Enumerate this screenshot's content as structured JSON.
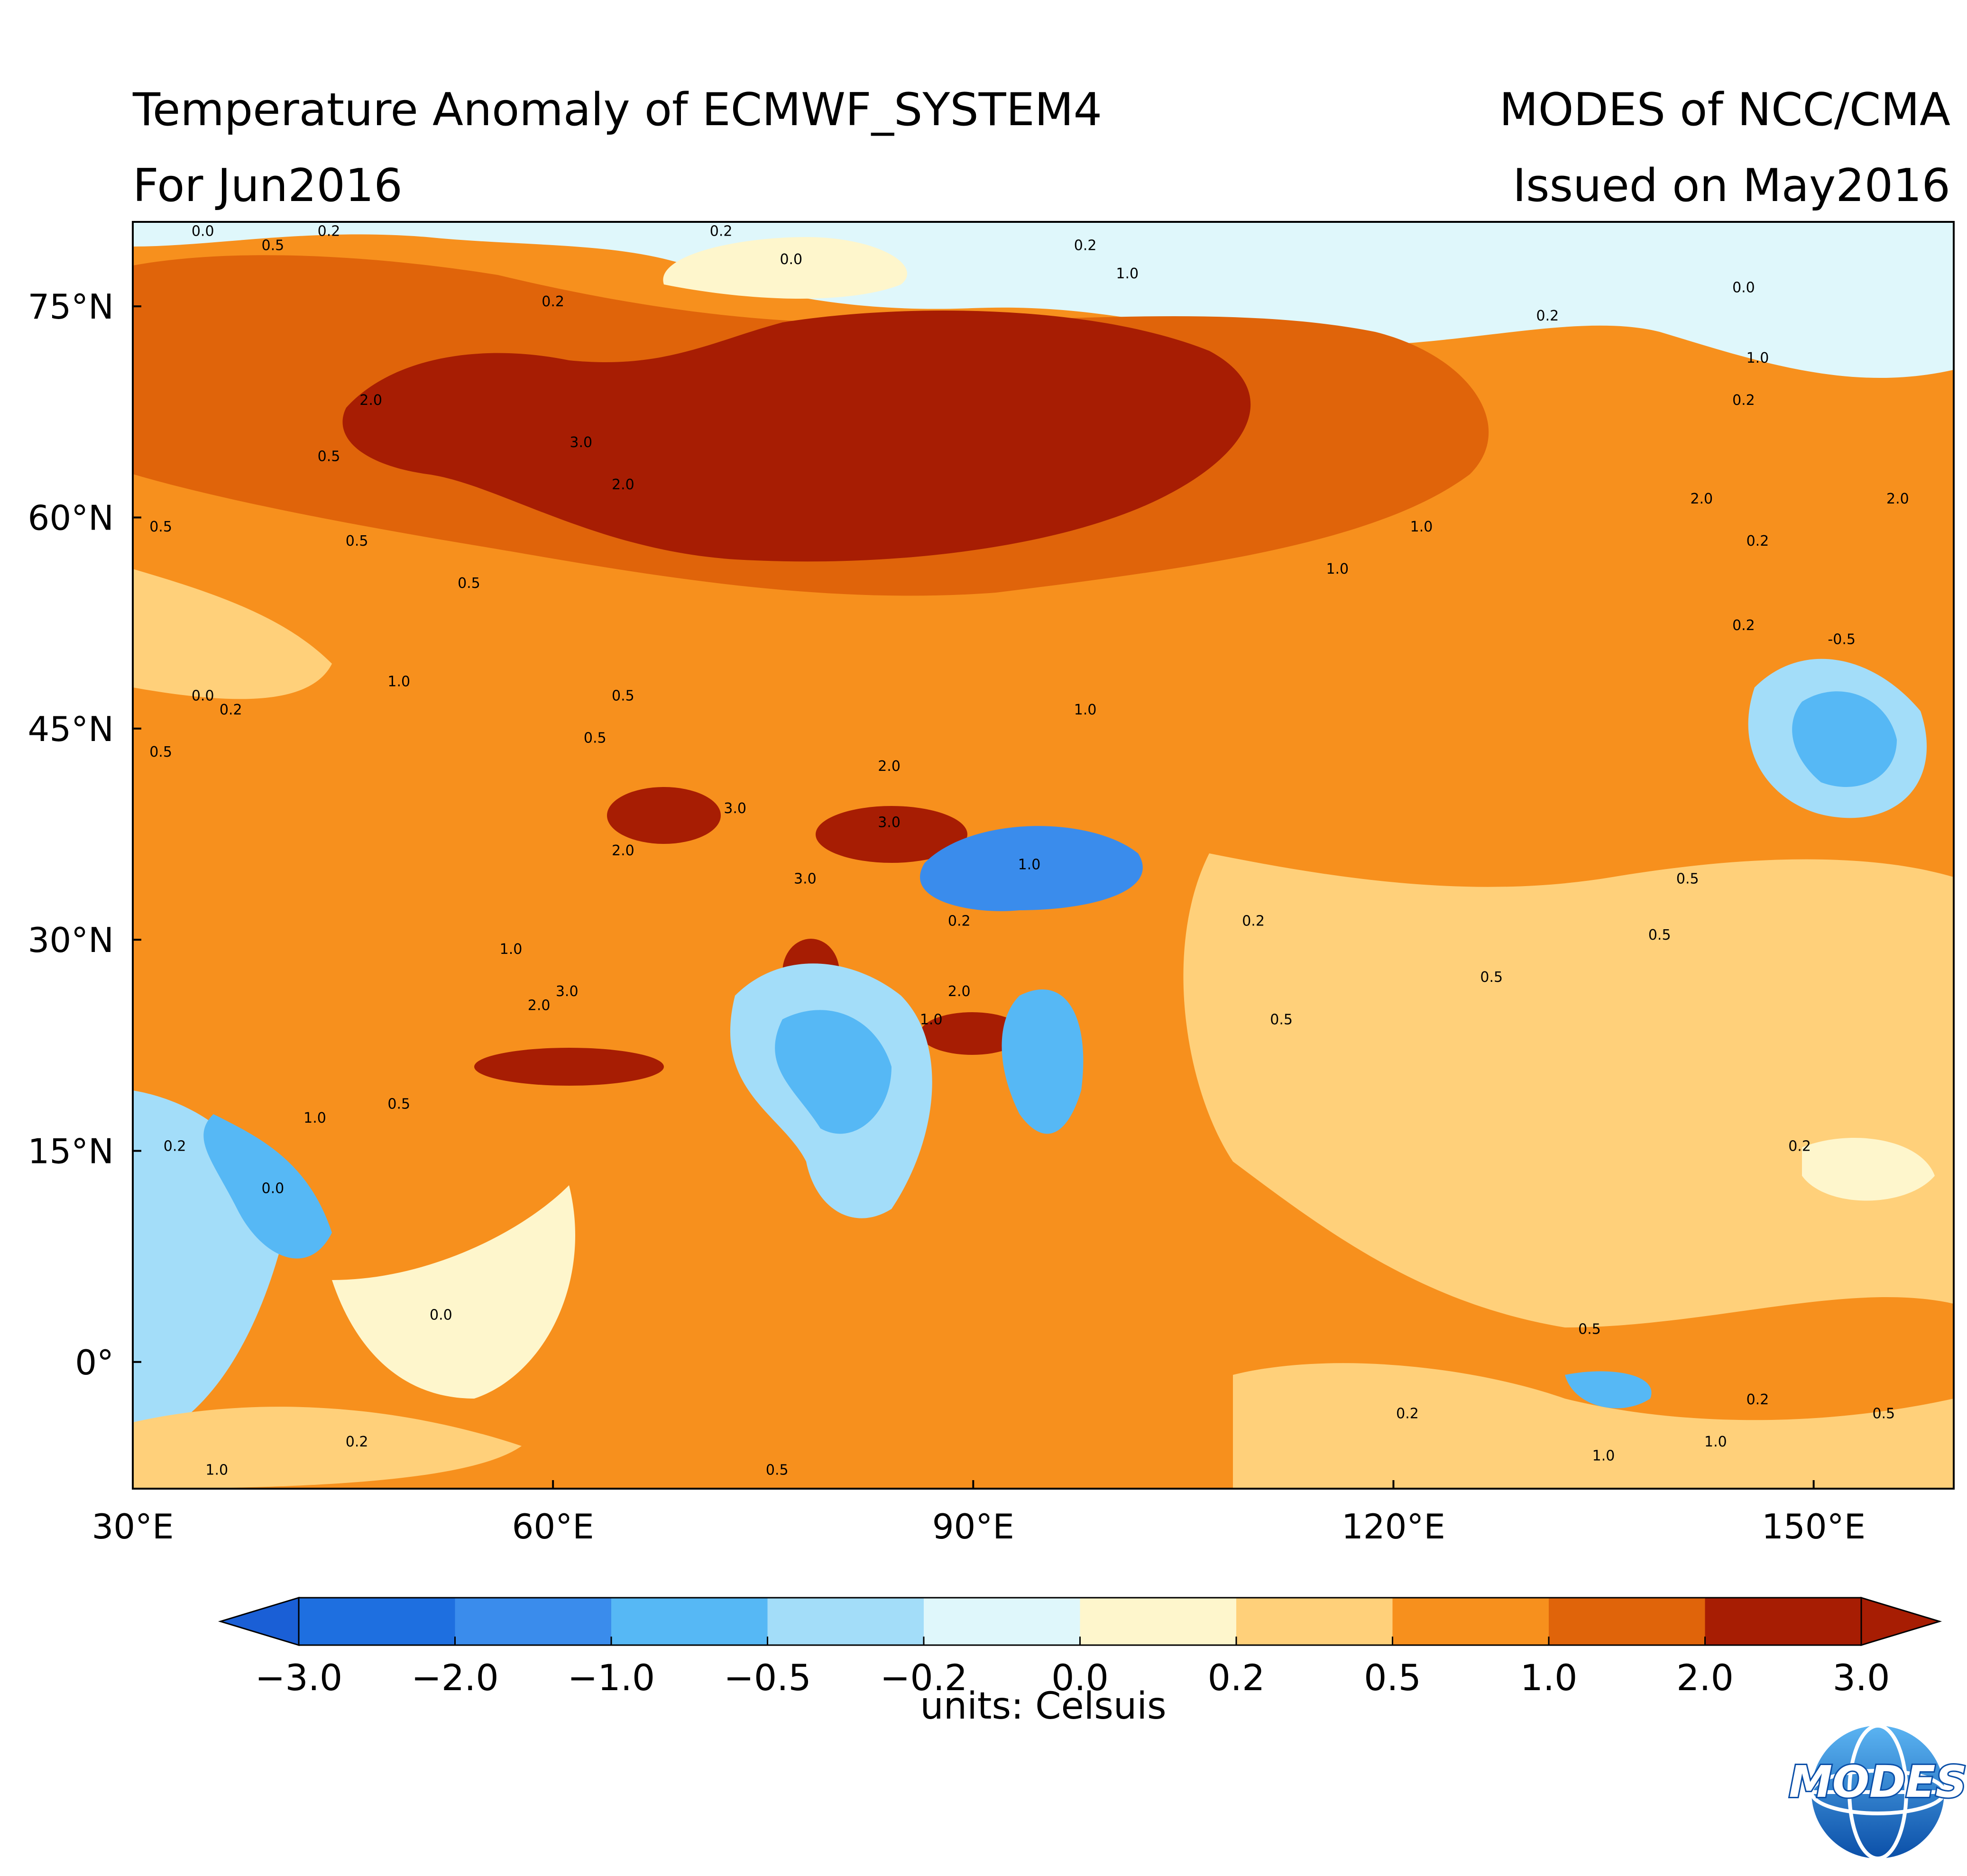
{
  "title": {
    "left_line1": "Temperature Anomaly of ECMWF_SYSTEM4",
    "left_line2": "For Jun2016",
    "right_line1": "MODES of NCC/CMA",
    "right_line2": "Issued on May2016"
  },
  "map": {
    "lon_range": [
      30,
      160
    ],
    "lat_range": [
      -9,
      81
    ],
    "x_ticks": [
      {
        "value": 30,
        "label": "30°E"
      },
      {
        "value": 60,
        "label": "60°E"
      },
      {
        "value": 90,
        "label": "90°E"
      },
      {
        "value": 120,
        "label": "120°E"
      },
      {
        "value": 150,
        "label": "150°E"
      }
    ],
    "y_ticks": [
      {
        "value": 75,
        "label": "75°N"
      },
      {
        "value": 60,
        "label": "60°N"
      },
      {
        "value": 45,
        "label": "45°N"
      },
      {
        "value": 30,
        "label": "30°N"
      },
      {
        "value": 15,
        "label": "15°N"
      },
      {
        "value": 0,
        "label": "0°"
      }
    ],
    "contour_labels": [
      {
        "lon": 35,
        "lat": 80,
        "text": "0.0"
      },
      {
        "lon": 40,
        "lat": 79,
        "text": "0.5"
      },
      {
        "lon": 44,
        "lat": 80,
        "text": "0.2"
      },
      {
        "lon": 60,
        "lat": 75,
        "text": "0.2"
      },
      {
        "lon": 77,
        "lat": 78,
        "text": "0.0"
      },
      {
        "lon": 72,
        "lat": 80,
        "text": "0.2"
      },
      {
        "lon": 98,
        "lat": 79,
        "text": "0.2"
      },
      {
        "lon": 101,
        "lat": 77,
        "text": "1.0"
      },
      {
        "lon": 62,
        "lat": 65,
        "text": "3.0"
      },
      {
        "lon": 65,
        "lat": 62,
        "text": "2.0"
      },
      {
        "lon": 47,
        "lat": 68,
        "text": "2.0"
      },
      {
        "lon": 44,
        "lat": 64,
        "text": "0.5"
      },
      {
        "lon": 46,
        "lat": 58,
        "text": "0.5"
      },
      {
        "lon": 54,
        "lat": 55,
        "text": "0.5"
      },
      {
        "lon": 32,
        "lat": 59,
        "text": "0.5"
      },
      {
        "lon": 131,
        "lat": 74,
        "text": "0.2"
      },
      {
        "lon": 145,
        "lat": 76,
        "text": "0.0"
      },
      {
        "lon": 146,
        "lat": 71,
        "text": "1.0"
      },
      {
        "lon": 145,
        "lat": 68,
        "text": "0.2"
      },
      {
        "lon": 142,
        "lat": 61,
        "text": "2.0"
      },
      {
        "lon": 156,
        "lat": 61,
        "text": "2.0"
      },
      {
        "lon": 122,
        "lat": 59,
        "text": "1.0"
      },
      {
        "lon": 116,
        "lat": 56,
        "text": "1.0"
      },
      {
        "lon": 146,
        "lat": 58,
        "text": "0.2"
      },
      {
        "lon": 152,
        "lat": 51,
        "text": "-0.5"
      },
      {
        "lon": 145,
        "lat": 52,
        "text": "0.2"
      },
      {
        "lon": 35,
        "lat": 47,
        "text": "0.0"
      },
      {
        "lon": 37,
        "lat": 46,
        "text": "0.2"
      },
      {
        "lon": 32,
        "lat": 43,
        "text": "0.5"
      },
      {
        "lon": 49,
        "lat": 48,
        "text": "1.0"
      },
      {
        "lon": 63,
        "lat": 44,
        "text": "0.5"
      },
      {
        "lon": 65,
        "lat": 47,
        "text": "0.5"
      },
      {
        "lon": 98,
        "lat": 46,
        "text": "1.0"
      },
      {
        "lon": 84,
        "lat": 42,
        "text": "2.0"
      },
      {
        "lon": 84,
        "lat": 38,
        "text": "3.0"
      },
      {
        "lon": 78,
        "lat": 34,
        "text": "3.0"
      },
      {
        "lon": 73,
        "lat": 39,
        "text": "3.0"
      },
      {
        "lon": 65,
        "lat": 36,
        "text": "2.0"
      },
      {
        "lon": 94,
        "lat": 35,
        "text": "1.0"
      },
      {
        "lon": 89,
        "lat": 31,
        "text": "0.2"
      },
      {
        "lon": 57,
        "lat": 29,
        "text": "1.0"
      },
      {
        "lon": 59,
        "lat": 25,
        "text": "2.0"
      },
      {
        "lon": 61,
        "lat": 26,
        "text": "3.0"
      },
      {
        "lon": 49,
        "lat": 18,
        "text": "0.5"
      },
      {
        "lon": 43,
        "lat": 17,
        "text": "1.0"
      },
      {
        "lon": 89,
        "lat": 26,
        "text": "2.0"
      },
      {
        "lon": 87,
        "lat": 24,
        "text": "1.0"
      },
      {
        "lon": 110,
        "lat": 31,
        "text": "0.2"
      },
      {
        "lon": 112,
        "lat": 24,
        "text": "0.5"
      },
      {
        "lon": 127,
        "lat": 27,
        "text": "0.5"
      },
      {
        "lon": 139,
        "lat": 30,
        "text": "0.5"
      },
      {
        "lon": 141,
        "lat": 34,
        "text": "0.5"
      },
      {
        "lon": 149,
        "lat": 15,
        "text": "0.2"
      },
      {
        "lon": 134,
        "lat": 2,
        "text": "0.5"
      },
      {
        "lon": 155,
        "lat": -4,
        "text": "0.5"
      },
      {
        "lon": 33,
        "lat": 15,
        "text": "0.2"
      },
      {
        "lon": 40,
        "lat": 12,
        "text": "0.0"
      },
      {
        "lon": 52,
        "lat": 3,
        "text": "0.0"
      },
      {
        "lon": 46,
        "lat": -6,
        "text": "0.2"
      },
      {
        "lon": 36,
        "lat": -8,
        "text": "1.0"
      },
      {
        "lon": 76,
        "lat": -8,
        "text": "0.5"
      },
      {
        "lon": 135,
        "lat": -7,
        "text": "1.0"
      },
      {
        "lon": 121,
        "lat": -4,
        "text": "0.2"
      },
      {
        "lon": 143,
        "lat": -6,
        "text": "1.0"
      },
      {
        "lon": 146,
        "lat": -3,
        "text": "0.2"
      }
    ]
  },
  "colorbar": {
    "colors": [
      "#1e6fe0",
      "#3a8cec",
      "#56b8f5",
      "#a3ddf9",
      "#dff7fb",
      "#fef6cc",
      "#ffd07a",
      "#f7901d",
      "#e0640a",
      "#a71d03"
    ],
    "ticks": [
      "−3.0",
      "−2.0",
      "−1.0",
      "−0.5",
      "−0.2",
      "0.0",
      "0.2",
      "0.5",
      "1.0",
      "2.0",
      "3.0"
    ],
    "units_label": "units:  Celsuis"
  },
  "logo": {
    "text": "MODES"
  }
}
